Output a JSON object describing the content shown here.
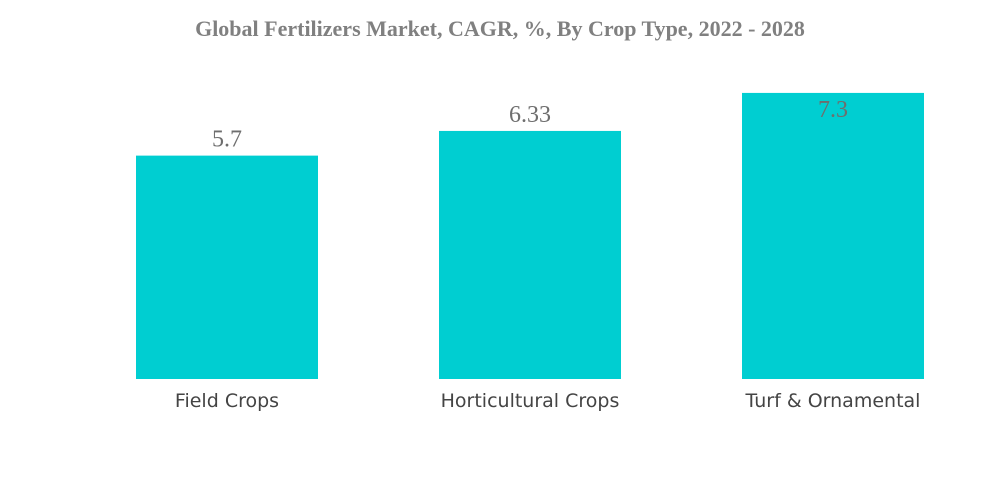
{
  "chart_data": {
    "type": "bar",
    "title": "Global Fertilizers Market, CAGR, %, By Crop Type, 2022 - 2028",
    "categories": [
      "Field Crops",
      "Horticultural Crops",
      "Turf & Ornamental"
    ],
    "values": [
      5.7,
      6.33,
      7.3
    ],
    "value_labels": [
      "5.7",
      "6.33",
      "7.3"
    ],
    "xlabel": "",
    "ylabel": "",
    "ylim": [
      0,
      7.4
    ],
    "grid": false,
    "legend": "none",
    "bar_color": "#00CED1",
    "value_label_color": "#6e6e6e",
    "category_label_color": "#444444",
    "title_color": "#808080"
  }
}
